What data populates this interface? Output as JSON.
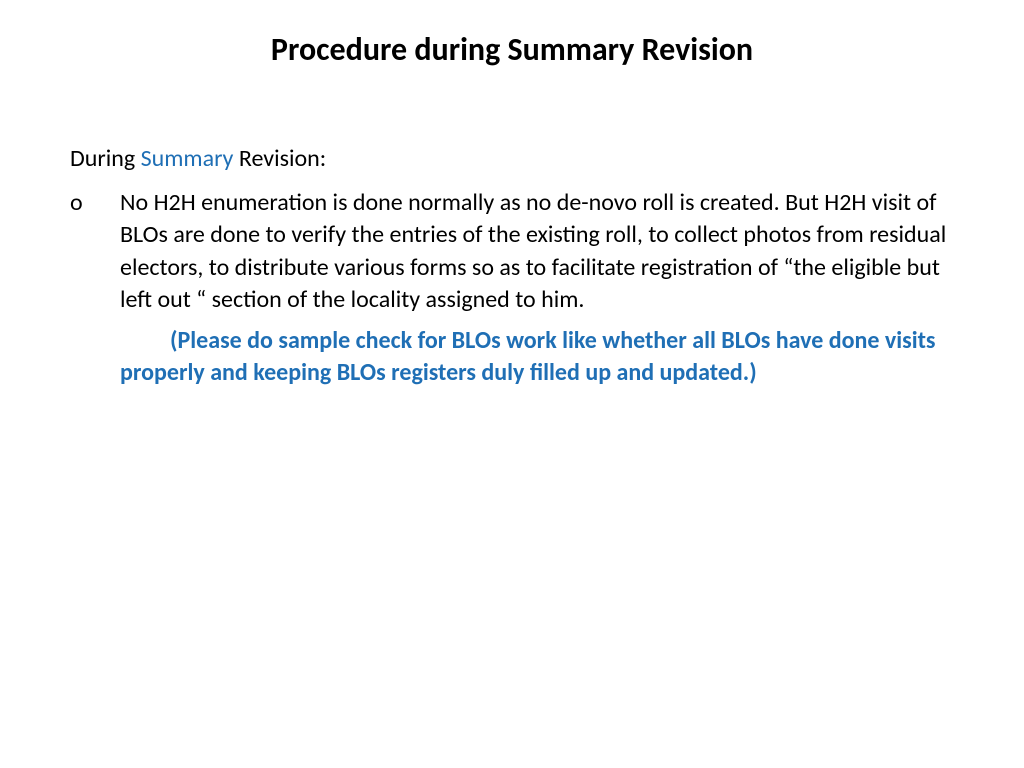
{
  "slide": {
    "title": "Procedure during Summary Revision",
    "intro_prefix": "During ",
    "intro_highlight": "Summary",
    "intro_suffix": " Revision:",
    "bullet_marker": "o",
    "bullet_text": " No H2H enumeration is done normally as no de-novo roll is created. But H2H visit of BLOs are done to verify the entries of the existing roll, to collect photos from residual electors, to distribute various forms  so as to facilitate registration of “the eligible but left out “ section of the locality assigned to him.",
    "note_text": "(Please do sample check  for BLOs work like whether all BLOs have done visits properly and keeping BLOs registers duly filled up and updated.)"
  },
  "colors": {
    "background": "#ffffff",
    "title_color": "#000000",
    "body_color": "#000000",
    "accent_color": "#1f6fb5"
  },
  "typography": {
    "title_fontsize": 32,
    "body_fontsize": 24,
    "title_weight": "bold",
    "note_weight": "bold"
  }
}
